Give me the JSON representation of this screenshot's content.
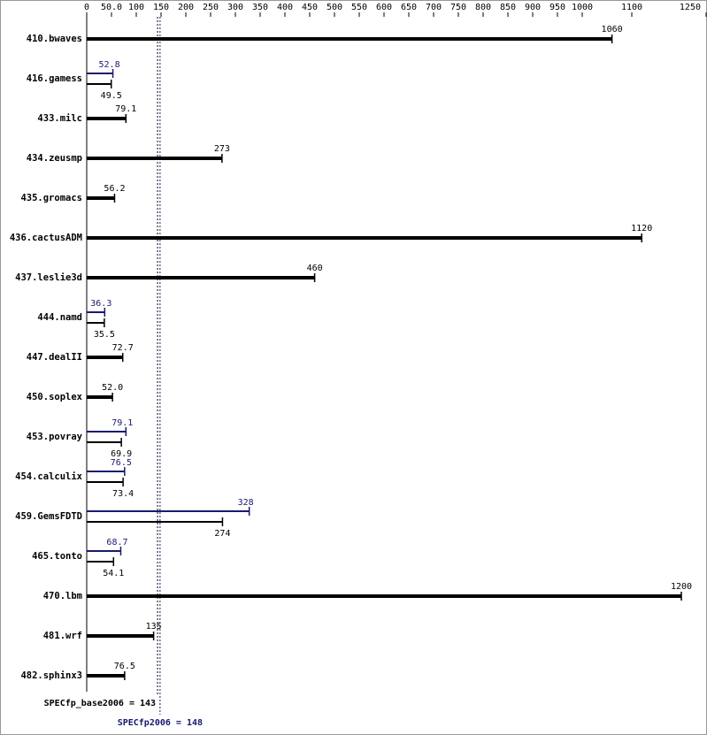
{
  "chart_data": {
    "type": "bar",
    "categories": [
      "410.bwaves",
      "416.gamess",
      "433.milc",
      "434.zeusmp",
      "435.gromacs",
      "436.cactusADM",
      "437.leslie3d",
      "444.namd",
      "447.dealII",
      "450.soplex",
      "453.povray",
      "454.calculix",
      "459.GemsFDTD",
      "465.tonto",
      "470.lbm",
      "481.wrf",
      "482.sphinx3"
    ],
    "series": [
      {
        "color": "#000000",
        "values": [
          1060,
          49.5,
          79.1,
          273,
          56.2,
          1120,
          460,
          35.5,
          72.7,
          52.0,
          69.9,
          73.4,
          274,
          54.1,
          1200,
          135,
          76.5
        ],
        "value_labels": [
          "1060",
          "49.5",
          "79.1",
          "273",
          "56.2",
          "1120",
          "460",
          "35.5",
          "72.7",
          "52.0",
          "69.9",
          "73.4",
          "274",
          "54.1",
          "1200",
          "135",
          "76.5"
        ]
      },
      {
        "color": "#191970",
        "values": [
          null,
          52.8,
          null,
          null,
          null,
          null,
          null,
          36.3,
          null,
          null,
          79.1,
          76.5,
          328,
          68.7,
          null,
          null,
          null
        ],
        "value_labels": [
          null,
          "52.8",
          null,
          null,
          null,
          null,
          null,
          "36.3",
          null,
          null,
          "79.1",
          "76.5",
          "328",
          "68.7",
          null,
          null,
          null
        ]
      }
    ],
    "xlim": [
      0,
      1250
    ],
    "xticks": [
      0,
      {
        "value": 50,
        "label": "50.0"
      },
      100,
      150,
      200,
      250,
      300,
      350,
      400,
      450,
      500,
      550,
      600,
      650,
      700,
      750,
      800,
      850,
      900,
      950,
      1000,
      1100,
      1250
    ],
    "reference_lines": [
      {
        "label": "SPECfp_base2006 = 143",
        "value": 143,
        "color": "#000000"
      },
      {
        "label": "SPECfp2006 = 148",
        "value": 148,
        "color": "#191970"
      }
    ]
  }
}
